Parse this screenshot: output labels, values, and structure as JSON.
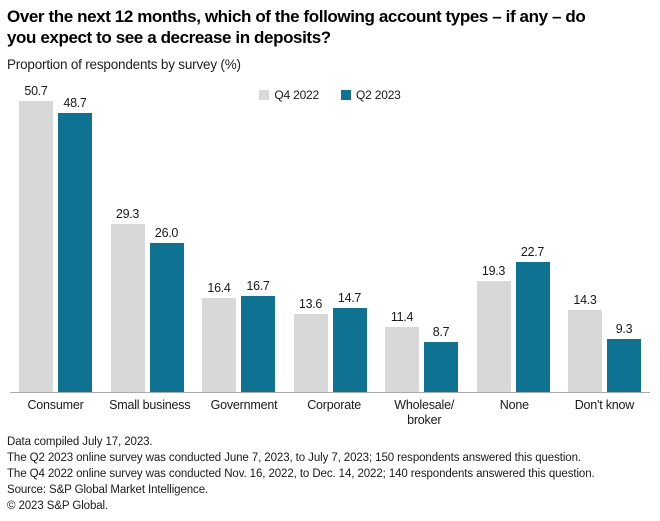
{
  "header": {
    "title": "Over the next 12 months, which of the following account types – if any – do\nyou expect to see a decrease in deposits?",
    "subtitle": "Proportion of respondents by survey (%)"
  },
  "chart_data": {
    "type": "bar",
    "title": "Over the next 12 months, which of the following account types – if any – do you expect to see a decrease in deposits?",
    "subtitle": "Proportion of respondents by survey (%)",
    "categories": [
      "Consumer",
      "Small business",
      "Government",
      "Corporate",
      "Wholesale/\nbroker",
      "None",
      "Don't know"
    ],
    "series": [
      {
        "name": "Q4 2022",
        "color": "#d8d8d8",
        "values": [
          50.7,
          29.3,
          16.4,
          13.6,
          11.4,
          19.3,
          14.3
        ]
      },
      {
        "name": "Q2 2023",
        "color": "#0e7392",
        "values": [
          48.7,
          26.0,
          16.7,
          14.7,
          8.7,
          22.7,
          9.3
        ]
      }
    ],
    "value_labels": true,
    "value_decimals": 1,
    "ylim": [
      0,
      53.7
    ],
    "grid": false,
    "legend_position": "top-center",
    "axis_line_color": "#ababab"
  },
  "footnotes": {
    "lines": [
      "Data compiled July 17, 2023.",
      "The Q2 2023 online survey was conducted June 7, 2023, to July 7, 2023; 150 respondents answered this question.",
      "The Q4 2022 online survey was conducted Nov. 16, 2022, to Dec. 14, 2022; 140 respondents answered this question.",
      "Source: S&P Global Market Intelligence.",
      "© 2023 S&P Global."
    ]
  }
}
